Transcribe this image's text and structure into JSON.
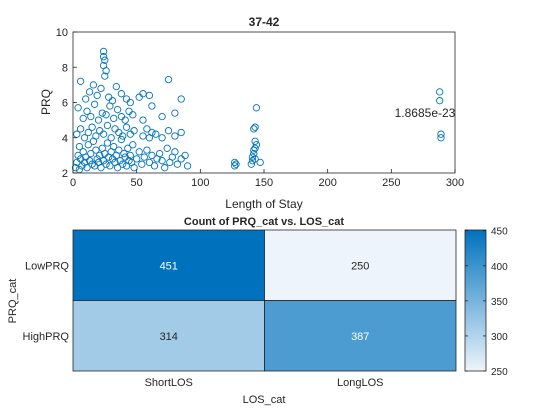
{
  "chart_data": [
    {
      "type": "scatter",
      "title": "37-42",
      "xlabel": "Length of Stay",
      "ylabel": "PRQ",
      "xlim": [
        0,
        300
      ],
      "ylim": [
        2,
        10
      ],
      "xticks": [
        "0",
        "50",
        "100",
        "150",
        "200",
        "250",
        "300"
      ],
      "yticks": [
        "2",
        "4",
        "6",
        "8",
        "10"
      ],
      "annotation": "1.8685e-23",
      "marker": "open-circle",
      "color": "#0072BD",
      "grid": false,
      "points": [
        [
          2,
          2.3
        ],
        [
          3,
          2.6
        ],
        [
          4,
          3.0
        ],
        [
          5,
          2.2
        ],
        [
          5,
          3.5
        ],
        [
          6,
          2.8
        ],
        [
          7,
          2.4
        ],
        [
          8,
          3.2
        ],
        [
          9,
          2.6
        ],
        [
          10,
          2.9
        ],
        [
          11,
          2.3
        ],
        [
          12,
          3.6
        ],
        [
          13,
          2.7
        ],
        [
          14,
          3.1
        ],
        [
          15,
          2.5
        ],
        [
          16,
          3.8
        ],
        [
          17,
          2.4
        ],
        [
          18,
          3.3
        ],
        [
          19,
          2.8
        ],
        [
          20,
          2.6
        ],
        [
          21,
          3.0
        ],
        [
          22,
          2.3
        ],
        [
          23,
          3.4
        ],
        [
          24,
          2.7
        ],
        [
          25,
          3.1
        ],
        [
          26,
          2.5
        ],
        [
          27,
          3.7
        ],
        [
          28,
          2.9
        ],
        [
          29,
          2.4
        ],
        [
          30,
          3.2
        ],
        [
          31,
          2.8
        ],
        [
          32,
          3.5
        ],
        [
          33,
          2.6
        ],
        [
          34,
          3.0
        ],
        [
          35,
          2.3
        ],
        [
          36,
          3.3
        ],
        [
          37,
          2.7
        ],
        [
          38,
          3.9
        ],
        [
          39,
          2.5
        ],
        [
          40,
          3.1
        ],
        [
          41,
          2.9
        ],
        [
          42,
          2.4
        ],
        [
          43,
          3.4
        ],
        [
          44,
          2.7
        ],
        [
          45,
          3.0
        ],
        [
          46,
          2.6
        ],
        [
          47,
          3.6
        ],
        [
          48,
          2.3
        ],
        [
          50,
          2.8
        ],
        [
          52,
          3.2
        ],
        [
          54,
          2.5
        ],
        [
          56,
          2.9
        ],
        [
          58,
          3.3
        ],
        [
          60,
          2.6
        ],
        [
          62,
          3.0
        ],
        [
          64,
          2.4
        ],
        [
          66,
          2.8
        ],
        [
          68,
          3.1
        ],
        [
          70,
          2.7
        ],
        [
          72,
          2.3
        ],
        [
          74,
          3.4
        ],
        [
          76,
          2.6
        ],
        [
          78,
          2.9
        ],
        [
          80,
          3.2
        ],
        [
          82,
          2.5
        ],
        [
          85,
          2.8
        ],
        [
          88,
          3.0
        ],
        [
          90,
          2.4
        ],
        [
          3,
          4.2
        ],
        [
          6,
          4.5
        ],
        [
          9,
          4.0
        ],
        [
          12,
          4.3
        ],
        [
          15,
          4.6
        ],
        [
          18,
          4.1
        ],
        [
          21,
          4.4
        ],
        [
          24,
          4.2
        ],
        [
          27,
          4.7
        ],
        [
          30,
          4.0
        ],
        [
          33,
          4.5
        ],
        [
          36,
          4.3
        ],
        [
          39,
          4.1
        ],
        [
          42,
          4.6
        ],
        [
          45,
          4.2
        ],
        [
          48,
          4.4
        ],
        [
          55,
          4.1
        ],
        [
          58,
          4.5
        ],
        [
          60,
          4.0
        ],
        [
          62,
          4.3
        ],
        [
          65,
          4.2
        ],
        [
          70,
          4.0
        ],
        [
          75,
          4.4
        ],
        [
          80,
          4.1
        ],
        [
          85,
          4.3
        ],
        [
          4,
          5.7
        ],
        [
          8,
          5.1
        ],
        [
          11,
          5.5
        ],
        [
          14,
          5.2
        ],
        [
          17,
          5.9
        ],
        [
          20,
          5.0
        ],
        [
          23,
          5.4
        ],
        [
          26,
          5.3
        ],
        [
          29,
          5.8
        ],
        [
          32,
          5.1
        ],
        [
          35,
          5.6
        ],
        [
          38,
          5.2
        ],
        [
          41,
          5.0
        ],
        [
          44,
          5.5
        ],
        [
          47,
          5.3
        ],
        [
          55,
          5.0
        ],
        [
          62,
          5.8
        ],
        [
          70,
          5.2
        ],
        [
          80,
          5.4
        ],
        [
          6,
          7.2
        ],
        [
          10,
          6.2
        ],
        [
          13,
          6.6
        ],
        [
          16,
          7.0
        ],
        [
          19,
          6.4
        ],
        [
          22,
          6.8
        ],
        [
          25,
          7.5
        ],
        [
          28,
          6.3
        ],
        [
          31,
          6.1
        ],
        [
          34,
          6.9
        ],
        [
          38,
          6.5
        ],
        [
          42,
          6.2
        ],
        [
          45,
          6.0
        ],
        [
          52,
          6.3
        ],
        [
          55,
          6.5
        ],
        [
          60,
          6.4
        ],
        [
          75,
          7.3
        ],
        [
          85,
          6.2
        ],
        [
          24,
          8.1
        ],
        [
          24,
          8.6
        ],
        [
          24,
          8.9
        ],
        [
          26,
          7.8
        ],
        [
          25,
          8.4
        ],
        [
          127,
          2.4
        ],
        [
          127,
          2.6
        ],
        [
          128,
          2.5
        ],
        [
          140,
          2.5
        ],
        [
          141,
          2.7
        ],
        [
          141,
          2.9
        ],
        [
          142,
          3.1
        ],
        [
          142,
          3.3
        ],
        [
          143,
          3.4
        ],
        [
          144,
          3.6
        ],
        [
          143,
          3.8
        ],
        [
          142,
          4.5
        ],
        [
          143,
          4.6
        ],
        [
          144,
          5.7
        ],
        [
          143,
          2.8
        ],
        [
          147,
          2.6
        ],
        [
          288,
          6.1
        ],
        [
          288,
          6.6
        ],
        [
          289,
          4.0
        ],
        [
          289,
          4.2
        ]
      ]
    },
    {
      "type": "heatmap",
      "title": "Count of PRQ_cat vs. LOS_cat",
      "xlabel": "LOS_cat",
      "ylabel": "PRQ_cat",
      "x_categories": [
        "ShortLOS",
        "LongLOS"
      ],
      "y_categories": [
        "LowPRQ",
        "HighPRQ"
      ],
      "values": [
        [
          451,
          250
        ],
        [
          314,
          387
        ]
      ],
      "colorbar": {
        "ticks": [
          "250",
          "300",
          "350",
          "400",
          "450"
        ],
        "min": 250,
        "max": 451
      },
      "colormap": [
        "#eef4fb",
        "#0072BD"
      ]
    }
  ]
}
